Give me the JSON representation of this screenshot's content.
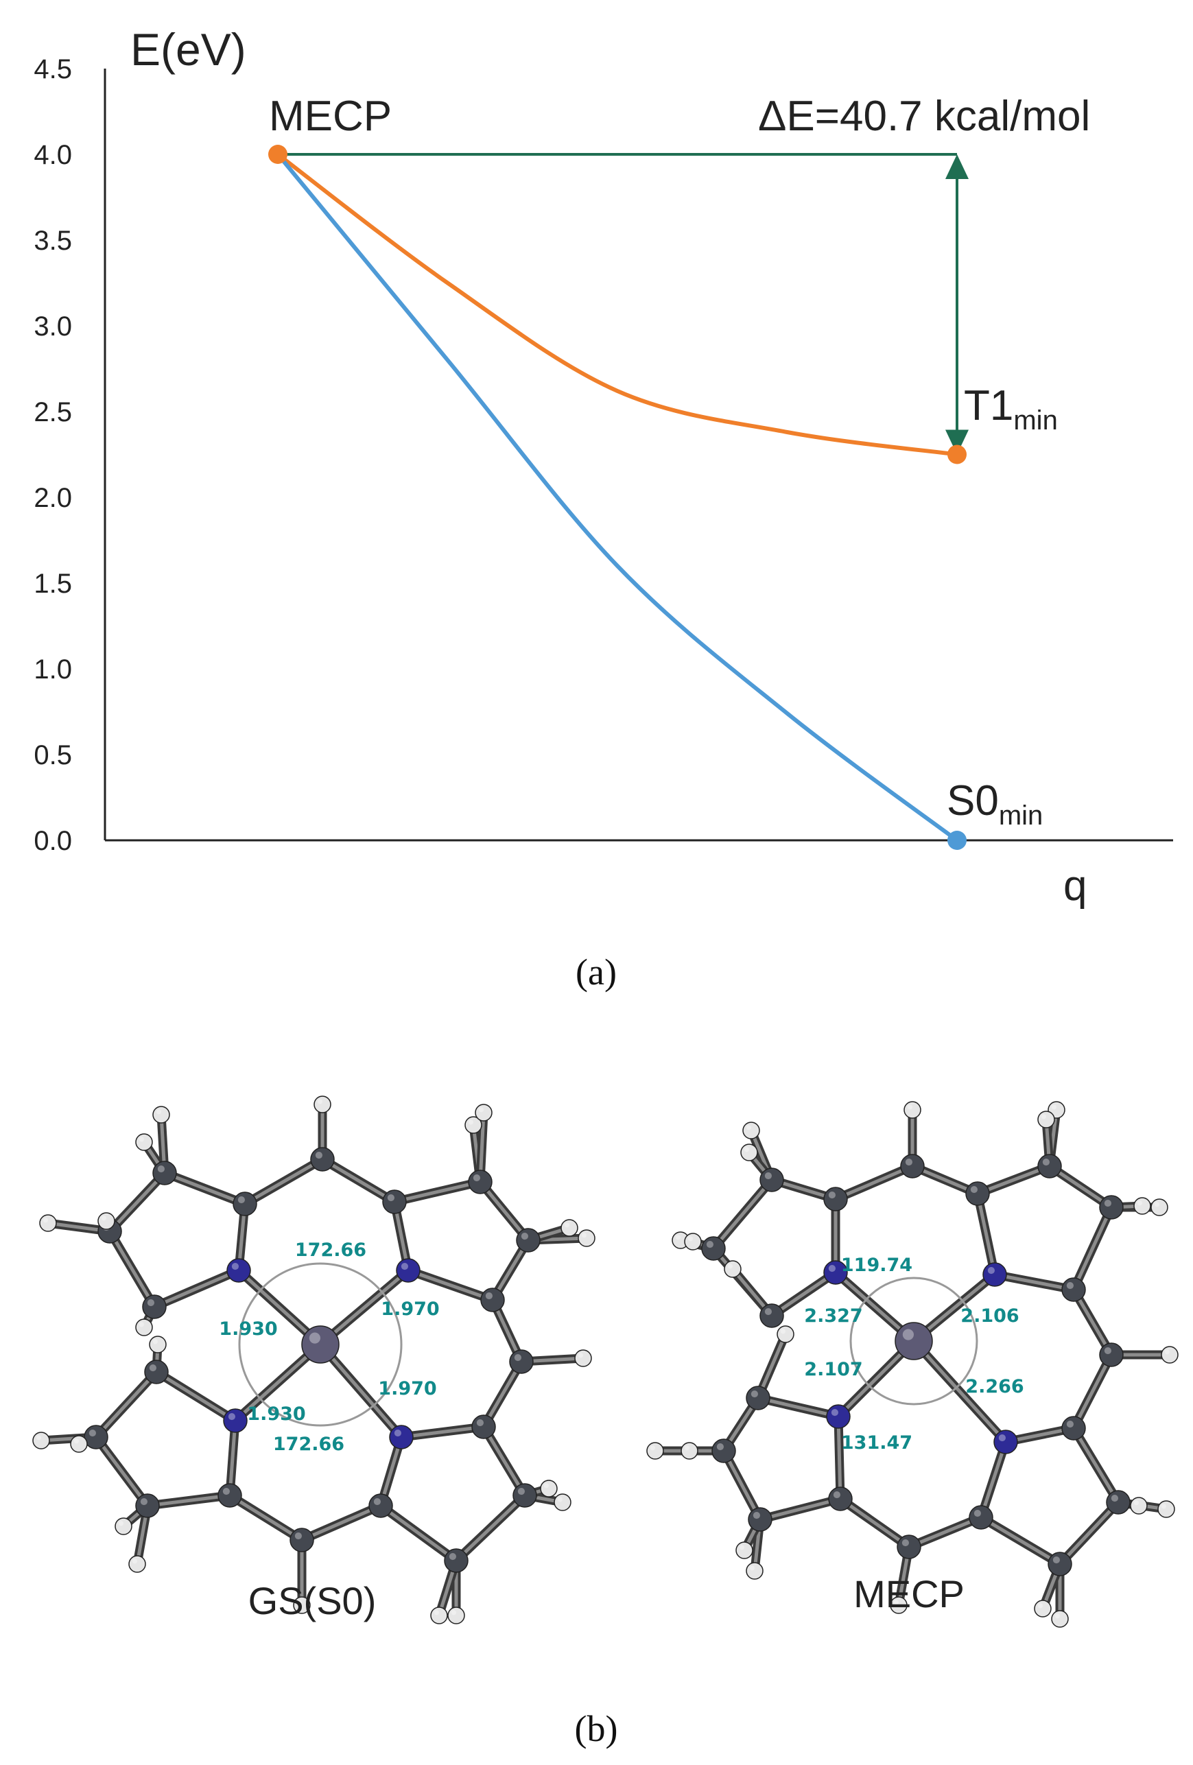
{
  "chart_data": {
    "type": "line",
    "ylabel": "E(eV)",
    "xlabel": "q",
    "ylim": [
      0,
      4.5
    ],
    "yticks": [
      "0.0",
      "0.5",
      "1.0",
      "1.5",
      "2.0",
      "2.5",
      "3.0",
      "3.5",
      "4.0",
      "4.5"
    ],
    "grid": false,
    "colors": {
      "T1": "#f07f2a",
      "S0": "#4e9ad6",
      "arrow": "#1f6e52"
    },
    "series": [
      {
        "key": "T1",
        "x": [
          0,
          0.25,
          0.5,
          0.75,
          1.0
        ],
        "values": [
          4.0,
          3.25,
          2.62,
          2.38,
          2.25
        ]
      },
      {
        "key": "S0",
        "x": [
          0,
          0.25,
          0.5,
          0.75,
          1.0
        ],
        "values": [
          4.0,
          2.8,
          1.6,
          0.74,
          0.0
        ]
      }
    ],
    "points": [
      {
        "label": "MECP",
        "x": 0,
        "y": 4.0,
        "color": "#f07f2a"
      },
      {
        "label_main": "T1",
        "label_sub": "min",
        "x": 1.0,
        "y": 2.25,
        "color": "#f07f2a"
      },
      {
        "label_main": "S0",
        "label_sub": "min",
        "x": 1.0,
        "y": 0.0,
        "color": "#4e9ad6"
      }
    ],
    "annotation": {
      "text": "ΔE=40.7 kcal/mol",
      "from_y": 4.0,
      "to_y": 2.25
    }
  },
  "captions": {
    "a": "(a)",
    "b": "(b)"
  },
  "structures": [
    {
      "name": "GS(S0)",
      "distances": [
        "1.930",
        "1.970",
        "1.930",
        "1.970"
      ],
      "angles": [
        "172.66",
        "172.66"
      ]
    },
    {
      "name": "MECP",
      "distances": [
        "2.327",
        "2.106",
        "2.107",
        "2.266"
      ],
      "angles": [
        "119.74",
        "131.47"
      ]
    }
  ]
}
